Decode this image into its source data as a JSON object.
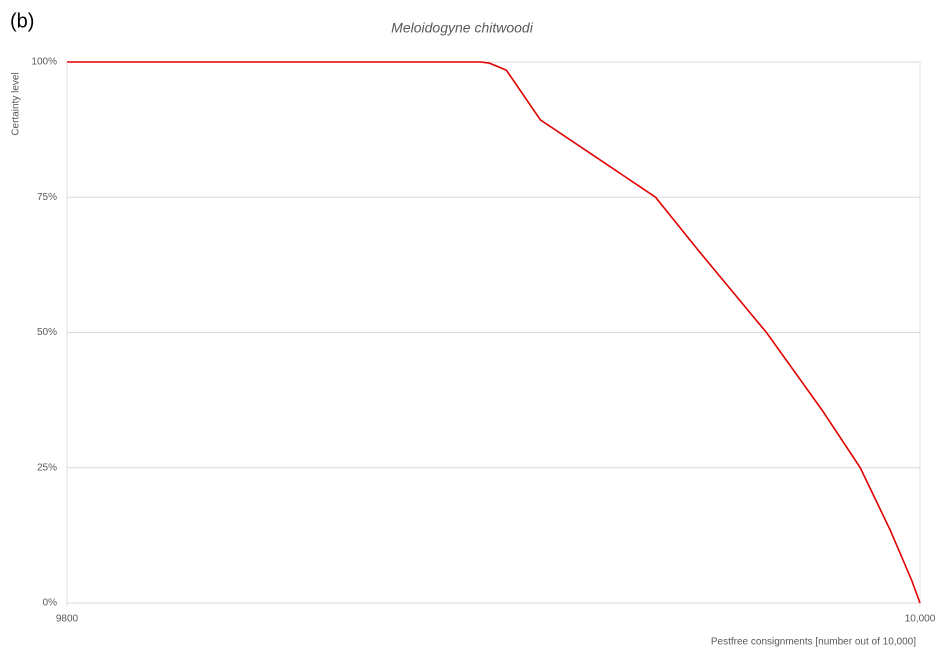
{
  "panel_label": "(b)",
  "chart_data": {
    "type": "line",
    "title": "Meloidogyne chitwoodi",
    "x_label": "Pestfree consignments [number out of 10,000]",
    "y_label": "Certainty level",
    "x": [
      9800,
      9897,
      9899,
      9903,
      9911,
      9925,
      9938,
      9948,
      9964,
      9977,
      9986,
      9993,
      9998,
      10000
    ],
    "series": [
      {
        "name": "Meloidogyne chitwoodi",
        "color": "#e00000",
        "values": [
          100,
          100,
          99.8,
          98.5,
          89.3,
          81.9,
          75,
          65.2,
          50,
          35.7,
          25,
          13.5,
          4.3,
          0
        ]
      }
    ],
    "xlim": [
      9800,
      10000
    ],
    "xticks": [
      9800,
      {
        "value": 10000,
        "label": "10,000"
      }
    ],
    "ylim": [
      0,
      100
    ],
    "yticks": [
      {
        "value": 0,
        "label": "0%"
      },
      {
        "value": 25,
        "label": "25%"
      },
      {
        "value": 50,
        "label": "50%"
      },
      {
        "value": 75,
        "label": "75%"
      },
      {
        "value": 100,
        "label": "100%"
      }
    ],
    "grid": true
  }
}
